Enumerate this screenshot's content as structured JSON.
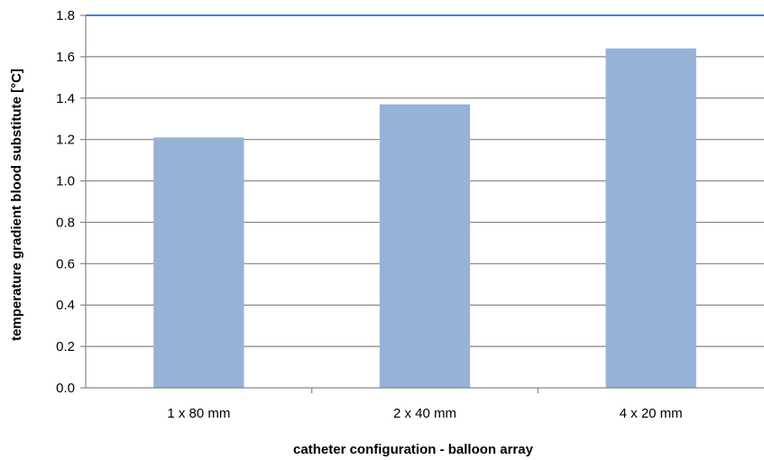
{
  "chart_data": {
    "type": "bar",
    "title": "",
    "xlabel": "catheter configuration - balloon array",
    "ylabel": "temperature gradient blood substitute [°C]",
    "categories": [
      "1 x 80 mm",
      "2 x 40 mm",
      "4 x 20 mm"
    ],
    "values": [
      1.21,
      1.37,
      1.64
    ],
    "ylim": [
      0,
      1.8
    ],
    "yticks": [
      "0.0",
      "0.2",
      "0.4",
      "0.6",
      "0.8",
      "1.0",
      "1.2",
      "1.4",
      "1.6",
      "1.8"
    ],
    "grid": true,
    "legend": "none",
    "colors": {
      "bar": "#95b3d7",
      "grid": "#868686",
      "top_line": "#4f81bd",
      "axis": "#868686"
    }
  }
}
